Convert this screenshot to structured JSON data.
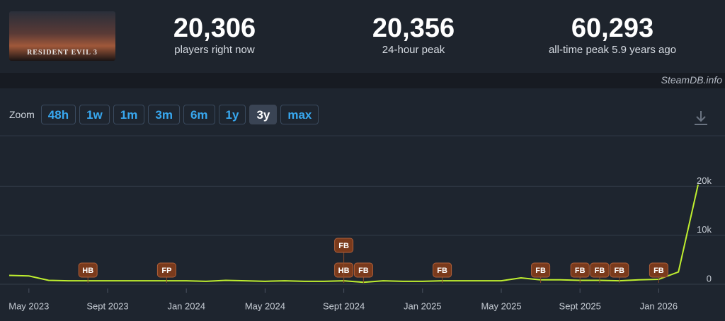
{
  "header": {
    "logo": "RESIDENT EVIL 3",
    "stats": [
      {
        "value": "20,306",
        "label": "players right now"
      },
      {
        "value": "20,356",
        "label": "24-hour peak"
      },
      {
        "value": "60,293",
        "label": "all-time peak 5.9 years ago"
      }
    ]
  },
  "source": "SteamDB.info",
  "zoom": {
    "label": "Zoom",
    "options": [
      "48h",
      "1w",
      "1m",
      "3m",
      "6m",
      "1y",
      "3y",
      "max"
    ],
    "active_index": 6
  },
  "chart_data": {
    "type": "line",
    "color": "#bfef2f",
    "x": [
      "2023-04",
      "2023-05",
      "2023-06",
      "2023-07",
      "2023-08",
      "2023-09",
      "2023-10",
      "2023-11",
      "2023-12",
      "2024-01",
      "2024-02",
      "2024-03",
      "2024-04",
      "2024-05",
      "2024-06",
      "2024-07",
      "2024-08",
      "2024-09",
      "2024-10",
      "2024-11",
      "2024-12",
      "2025-01",
      "2025-02",
      "2025-03",
      "2025-04",
      "2025-05",
      "2025-06",
      "2025-07",
      "2025-08",
      "2025-09",
      "2025-10",
      "2025-11",
      "2025-12",
      "2026-01",
      "2026-02",
      "2026-03"
    ],
    "values": [
      1800,
      1700,
      800,
      700,
      700,
      700,
      700,
      700,
      700,
      700,
      600,
      800,
      700,
      600,
      700,
      600,
      600,
      700,
      400,
      700,
      600,
      600,
      700,
      700,
      700,
      700,
      1300,
      900,
      900,
      800,
      800,
      700,
      900,
      1000,
      2500,
      20306
    ],
    "xlim": [
      "2023-04",
      "2026-03"
    ],
    "xticks": [
      {
        "value": "2023-05",
        "label": "May 2023"
      },
      {
        "value": "2023-09",
        "label": "Sept 2023"
      },
      {
        "value": "2024-01",
        "label": "Jan 2024"
      },
      {
        "value": "2024-05",
        "label": "May 2024"
      },
      {
        "value": "2024-09",
        "label": "Sept 2024"
      },
      {
        "value": "2025-01",
        "label": "Jan 2025"
      },
      {
        "value": "2025-05",
        "label": "May 2025"
      },
      {
        "value": "2025-09",
        "label": "Sept 2025"
      },
      {
        "value": "2026-01",
        "label": "Jan 2026"
      }
    ],
    "ylim": [
      0,
      30000
    ],
    "yticks": [
      0,
      {
        "value": 10000,
        "label": "10k"
      },
      {
        "value": 20000,
        "label": "20k"
      }
    ],
    "grid": true,
    "events": [
      {
        "x": "2023-08",
        "label": "HB"
      },
      {
        "x": "2023-12",
        "label": "FP"
      },
      {
        "x": "2024-09",
        "label": "HB"
      },
      {
        "x": "2024-09",
        "label": "FB"
      },
      {
        "x": "2024-10",
        "label": "FB"
      },
      {
        "x": "2025-02",
        "label": "FB"
      },
      {
        "x": "2025-07",
        "label": "FB"
      },
      {
        "x": "2025-09",
        "label": "FB"
      },
      {
        "x": "2025-10",
        "label": "FB"
      },
      {
        "x": "2025-11",
        "label": "FB"
      },
      {
        "x": "2026-01",
        "label": "FB"
      }
    ]
  }
}
